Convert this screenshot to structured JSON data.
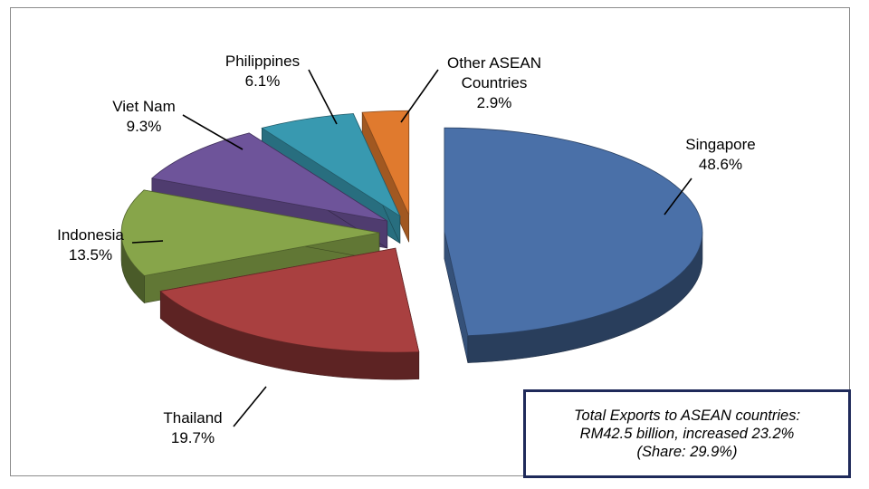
{
  "chart_data": {
    "type": "pie",
    "style": "3d-exploded",
    "slices": [
      {
        "name": "Singapore",
        "value": 48.6,
        "value_label": "48.6%",
        "color": "#4a70a8"
      },
      {
        "name": "Thailand",
        "value": 19.7,
        "value_label": "19.7%",
        "color": "#a94040"
      },
      {
        "name": "Indonesia",
        "value": 13.5,
        "value_label": "13.5%",
        "color": "#87a54a"
      },
      {
        "name": "Viet Nam",
        "value": 9.3,
        "value_label": "9.3%",
        "color": "#6e549a"
      },
      {
        "name": "Philippines",
        "value": 6.1,
        "value_label": "6.1%",
        "color": "#3899b0"
      },
      {
        "name": "Other ASEAN Countries",
        "value": 2.9,
        "value_label": "2.9%",
        "color": "#e07a2e"
      }
    ],
    "legend": "none"
  },
  "summary": {
    "line1": "Total Exports to ASEAN countries:",
    "line2": "RM42.5 billion, increased 23.2%",
    "line3": "(Share: 29.9%)"
  }
}
